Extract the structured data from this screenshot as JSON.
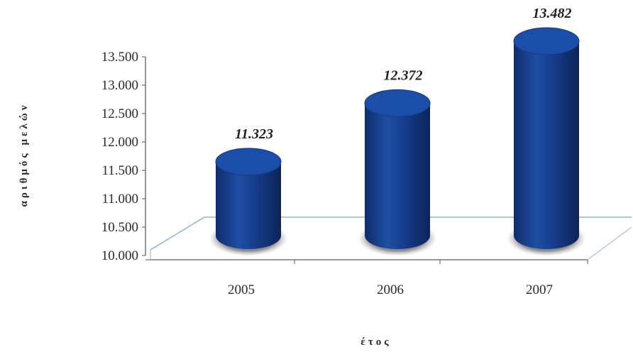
{
  "chart_data": {
    "type": "bar",
    "style": "3d-cylinder",
    "categories": [
      "2005",
      "2006",
      "2007"
    ],
    "values": [
      11323,
      12372,
      13482
    ],
    "data_labels": [
      "11.323",
      "12.372",
      "13.482"
    ],
    "ylabel": "αριθμός μελών",
    "xlabel": "έτος",
    "yticks": [
      "10.000",
      "10.500",
      "11.000",
      "11.500",
      "12.000",
      "12.500",
      "13.000",
      "13.500"
    ],
    "ylim": [
      10000,
      13500
    ],
    "grid": false,
    "legend": "none",
    "colors": {
      "bar_fill": "#173d8c",
      "bar_dark": "#0e2a66",
      "bar_top": "#1b4ea8",
      "shadow": "#7d7d7d",
      "floor_line": "#7fa6c8",
      "axis": "#555555"
    }
  }
}
